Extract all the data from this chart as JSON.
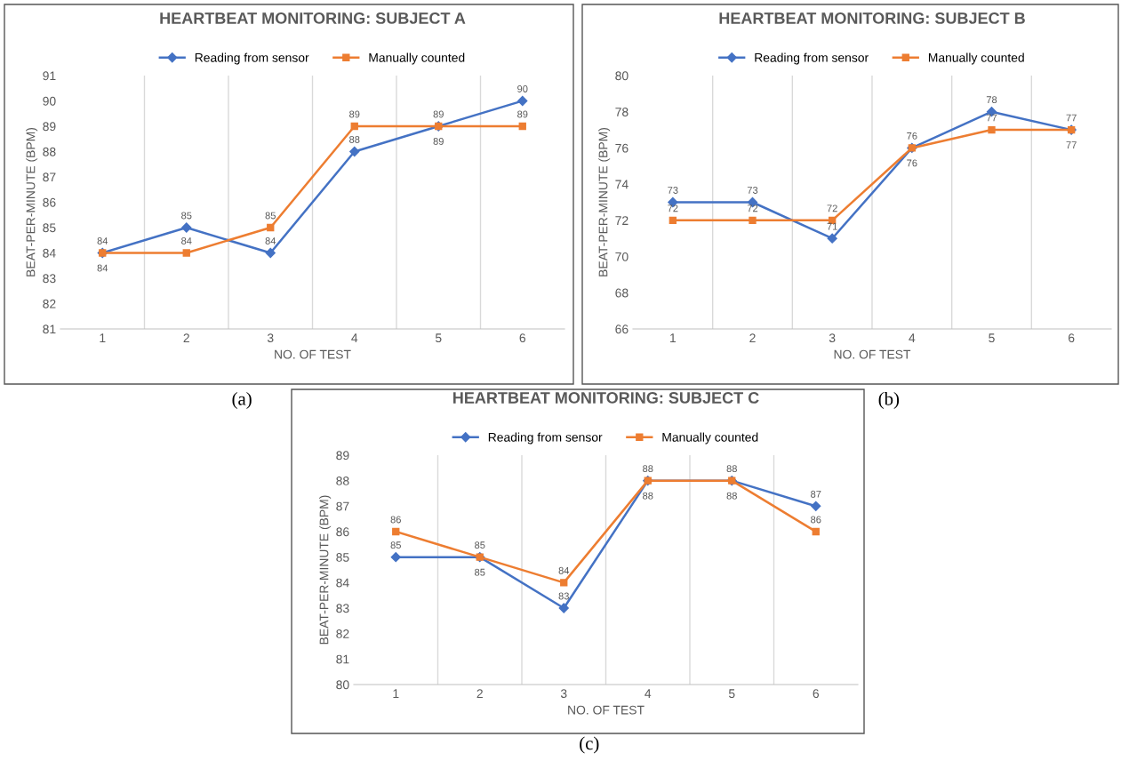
{
  "chart_data": [
    {
      "type": "line",
      "title": "HEARTBEAT MONITORING: SUBJECT A",
      "xlabel": "NO. OF TEST",
      "ylabel": "BEAT-PER-MINUTE (BPM)",
      "categories": [
        "1",
        "2",
        "3",
        "4",
        "5",
        "6"
      ],
      "series": [
        {
          "name": "Reading from sensor",
          "color": "#4472c4",
          "marker": "diamond",
          "values": [
            84,
            85,
            84,
            88,
            89,
            90
          ]
        },
        {
          "name": "Manually counted",
          "color": "#ed7d31",
          "marker": "square",
          "values": [
            84,
            84,
            85,
            89,
            89,
            89
          ]
        }
      ],
      "ylim": [
        81,
        91
      ],
      "yticks": [
        81,
        82,
        83,
        84,
        85,
        86,
        87,
        88,
        89,
        90,
        91
      ],
      "grid": "x",
      "legend": "top",
      "data_labels": true,
      "line_style": "solid",
      "annotations": [
        "(a)"
      ]
    },
    {
      "type": "line",
      "title": "HEARTBEAT MONITORING: SUBJECT B",
      "xlabel": "NO. OF TEST",
      "ylabel": "BEAT-PER-MINUTE (BPM)",
      "categories": [
        "1",
        "2",
        "3",
        "4",
        "5",
        "6"
      ],
      "series": [
        {
          "name": "Reading from sensor",
          "color": "#4472c4",
          "marker": "diamond",
          "values": [
            73,
            73,
            71,
            76,
            78,
            77
          ]
        },
        {
          "name": "Manually counted",
          "color": "#ed7d31",
          "marker": "square",
          "values": [
            72,
            72,
            72,
            76,
            77,
            77
          ]
        }
      ],
      "ylim": [
        66,
        80
      ],
      "yticks": [
        66,
        68,
        70,
        72,
        74,
        76,
        78,
        80
      ],
      "grid": "x",
      "legend": "top",
      "data_labels": true,
      "line_style": "solid",
      "annotations": [
        "(b)"
      ]
    },
    {
      "type": "line",
      "title": "HEARTBEAT MONITORING: SUBJECT C",
      "xlabel": "NO. OF TEST",
      "ylabel": "BEAT-PER-MINUTE (BPM)",
      "categories": [
        "1",
        "2",
        "3",
        "4",
        "5",
        "6"
      ],
      "series": [
        {
          "name": "Reading from sensor",
          "color": "#4472c4",
          "marker": "diamond",
          "values": [
            85,
            85,
            83,
            88,
            88,
            87
          ]
        },
        {
          "name": "Manually counted",
          "color": "#ed7d31",
          "marker": "square",
          "values": [
            86,
            85,
            84,
            88,
            88,
            86
          ]
        }
      ],
      "ylim": [
        80,
        89
      ],
      "yticks": [
        80,
        81,
        82,
        83,
        84,
        85,
        86,
        87,
        88,
        89
      ],
      "grid": "x",
      "legend": "top",
      "data_labels": true,
      "line_style": "solid",
      "annotations": [
        "(c)"
      ]
    }
  ]
}
